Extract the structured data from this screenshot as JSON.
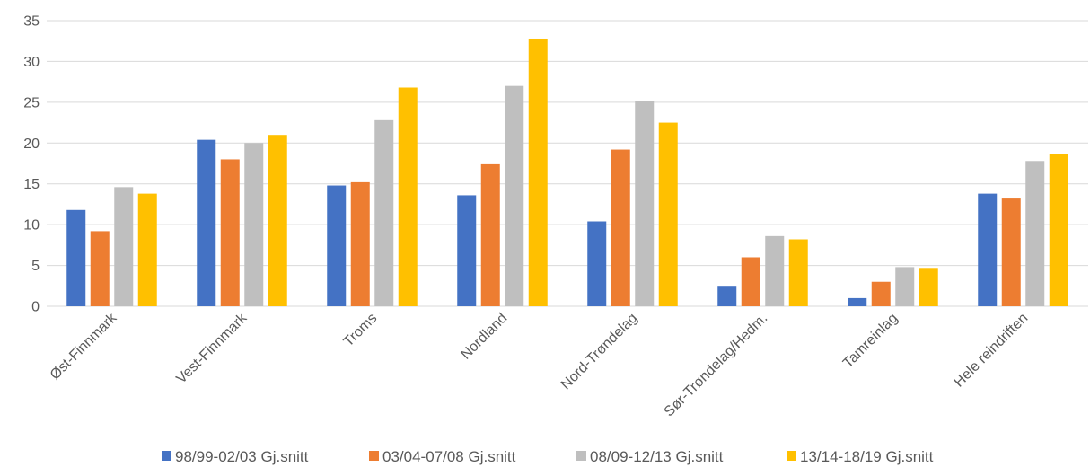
{
  "chart_data": {
    "type": "bar",
    "title": "",
    "xlabel": "",
    "ylabel": "",
    "ylim": [
      0,
      35
    ],
    "yticks": [
      0,
      5,
      10,
      15,
      20,
      25,
      30,
      35
    ],
    "grid": true,
    "legend_position": "bottom",
    "categories": [
      "Øst-Finnmark",
      "Vest-Finnmark",
      "Troms",
      "Nordland",
      "Nord-Trøndelag",
      "Sør-Trøndelag/Hedm.",
      "Tamreinlag",
      "Hele reindriften"
    ],
    "series": [
      {
        "name": "98/99-02/03 Gj.snitt",
        "color": "#4472c4",
        "values": [
          11.8,
          20.4,
          14.8,
          13.6,
          10.4,
          2.4,
          1.0,
          13.8
        ]
      },
      {
        "name": "03/04-07/08 Gj.snitt",
        "color": "#ed7d31",
        "values": [
          9.2,
          18.0,
          15.2,
          17.4,
          19.2,
          6.0,
          3.0,
          13.2
        ]
      },
      {
        "name": "08/09-12/13 Gj.snitt",
        "color": "#bfbfbf",
        "values": [
          14.6,
          20.0,
          22.8,
          27.0,
          25.2,
          8.6,
          4.8,
          17.8
        ]
      },
      {
        "name": "13/14-18/19 Gj.snitt",
        "color": "#ffc000",
        "values": [
          13.8,
          21.0,
          26.8,
          32.8,
          22.5,
          8.2,
          4.7,
          18.6
        ]
      }
    ]
  }
}
